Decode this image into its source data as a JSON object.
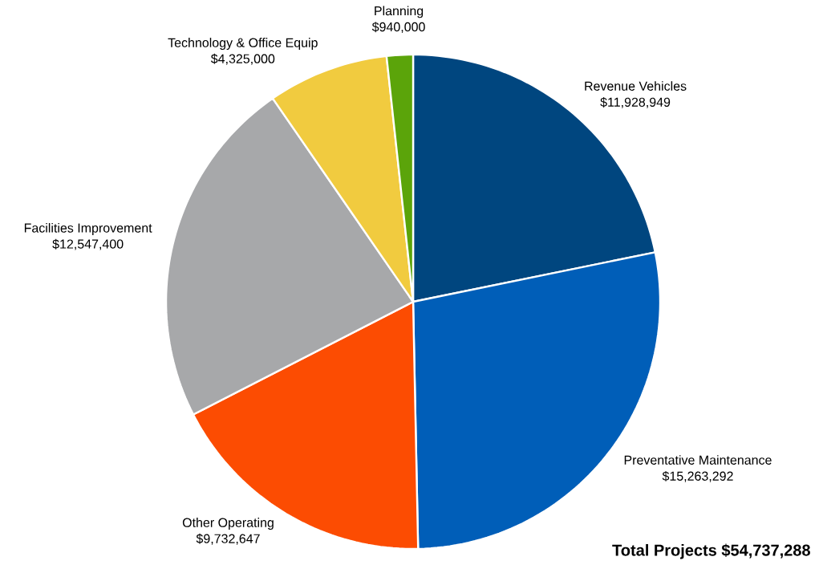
{
  "chart_data": {
    "type": "pie",
    "categories": [
      "Revenue Vehicles",
      "Preventative Maintenance",
      "Other Operating",
      "Facilities Improvement",
      "Technology & Office Equip",
      "Planning"
    ],
    "values": [
      11928949,
      15263292,
      9732647,
      12547400,
      4325000,
      940000
    ],
    "value_labels": [
      "$11,928,949",
      "$15,263,292",
      "$9,732,647",
      "$12,547,400",
      "$4,325,000",
      "$940,000"
    ],
    "colors": [
      "#00467f",
      "#005eb8",
      "#fc4c02",
      "#a7a8aa",
      "#f1cb3f",
      "#5ba40a"
    ],
    "annotations": [
      "Total Projects $54,737,288"
    ]
  }
}
